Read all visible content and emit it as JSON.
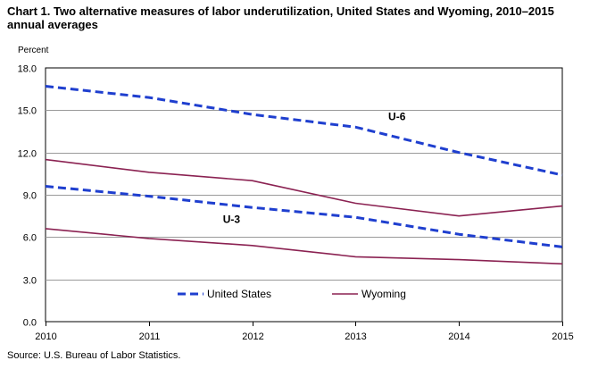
{
  "chart_data": {
    "type": "line",
    "title": "Chart 1. Two alternative measures of labor underutilization, United States and Wyoming, 2010–2015 annual averages",
    "ylabel": "Percent",
    "xlabel": "",
    "x": [
      2010,
      2011,
      2012,
      2013,
      2014,
      2015
    ],
    "ylim": [
      0,
      18
    ],
    "yticks": [
      0,
      3,
      6,
      9,
      12,
      15,
      18
    ],
    "ytick_labels": [
      "0.0",
      "3.0",
      "6.0",
      "9.0",
      "12.0",
      "15.0",
      "18.0"
    ],
    "xtick_labels": [
      "2010",
      "2011",
      "2012",
      "2013",
      "2014",
      "2015"
    ],
    "grid": true,
    "series": [
      {
        "name": "United States",
        "measure": "U-6",
        "style": "dashed",
        "color": "#1f3fcf",
        "values": [
          16.7,
          15.9,
          14.7,
          13.8,
          12.0,
          10.4
        ]
      },
      {
        "name": "United States",
        "measure": "U-3",
        "style": "dashed",
        "color": "#1f3fcf",
        "values": [
          9.6,
          8.9,
          8.1,
          7.4,
          6.2,
          5.3
        ]
      },
      {
        "name": "Wyoming",
        "measure": "U-6",
        "style": "solid",
        "color": "#8b2252",
        "values": [
          11.5,
          10.6,
          10.0,
          8.4,
          7.5,
          8.2
        ]
      },
      {
        "name": "Wyoming",
        "measure": "U-3",
        "style": "solid",
        "color": "#8b2252",
        "values": [
          6.6,
          5.9,
          5.4,
          4.6,
          4.4,
          4.1
        ]
      }
    ],
    "annotations": [
      {
        "text": "U-6",
        "x": 2013.4,
        "y": 14.3
      },
      {
        "text": "U-3",
        "x": 2011.8,
        "y": 7.0
      }
    ],
    "legend": {
      "placement": "bottom",
      "entries": [
        {
          "label": "United States",
          "style": "dashed",
          "color": "#1f3fcf"
        },
        {
          "label": "Wyoming",
          "style": "solid",
          "color": "#8b2252"
        }
      ]
    },
    "source": "Source: U.S. Bureau of Labor Statistics."
  }
}
